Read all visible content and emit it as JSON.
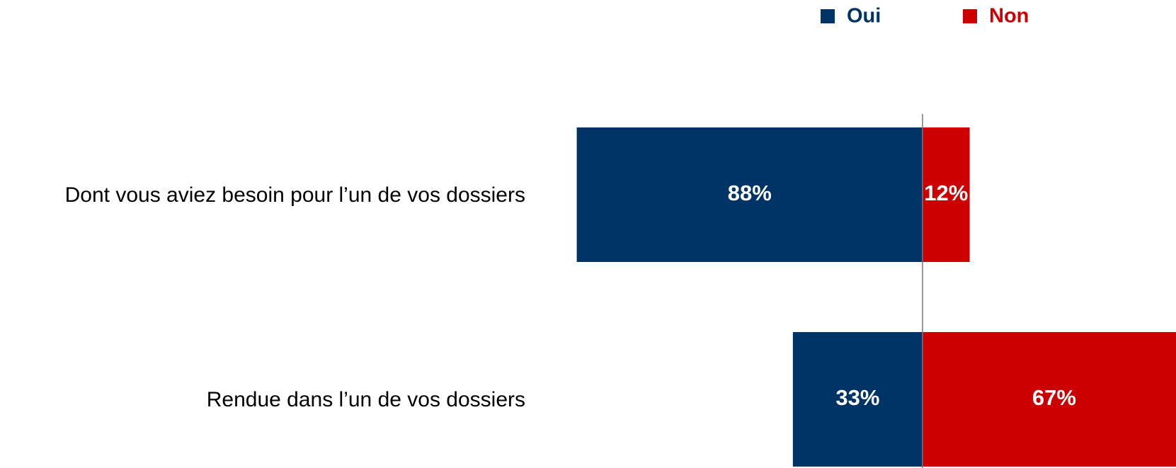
{
  "chart_data": {
    "type": "bar",
    "categories": [
      "Dont vous aviez besoin pour l’un de vos dossiers",
      "Rendue dans l’un de vos dossiers"
    ],
    "series": [
      {
        "name": "Oui",
        "color": "#003466",
        "values": [
          88,
          33
        ],
        "value_labels": [
          "88%",
          "33%"
        ]
      },
      {
        "name": "Non",
        "color": "#cc0000",
        "values": [
          12,
          67
        ],
        "value_labels": [
          "12%",
          "67%"
        ]
      }
    ]
  }
}
